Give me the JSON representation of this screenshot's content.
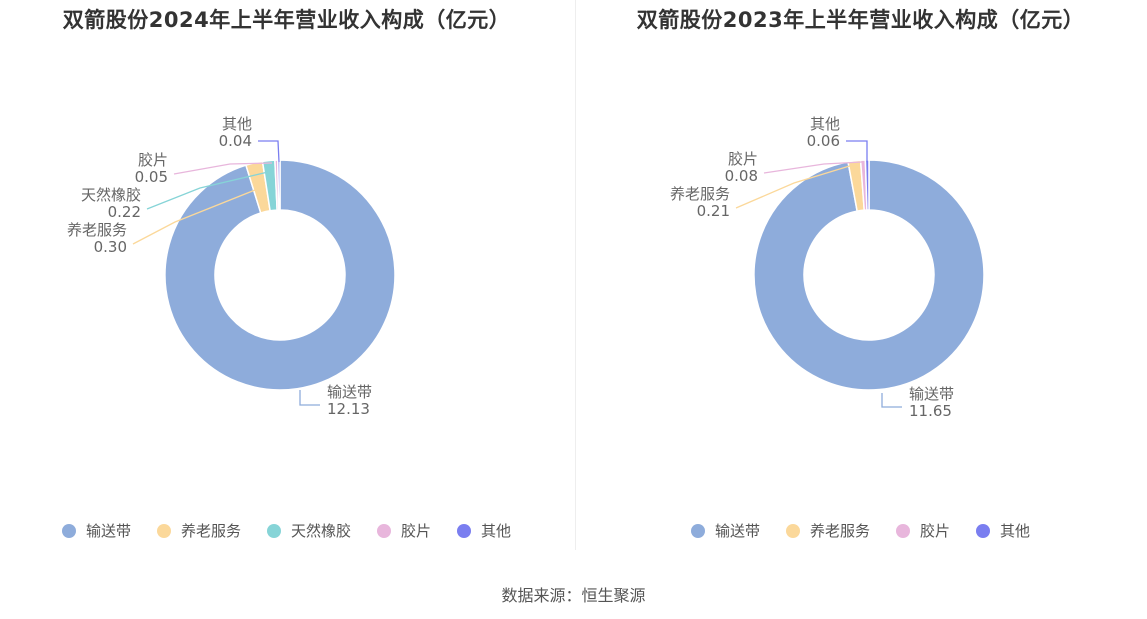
{
  "chart_data": [
    {
      "type": "pie",
      "variant": "donut",
      "title": "双箭股份2024年上半年营业收入构成（亿元）",
      "slices": [
        {
          "name": "输送带",
          "label": "12.13",
          "value": 12.13,
          "color": "#8eacdb"
        },
        {
          "name": "养老服务",
          "label": "0.30",
          "value": 0.3,
          "color": "#fbd89a"
        },
        {
          "name": "天然橡胶",
          "label": "0.22",
          "value": 0.22,
          "color": "#86d4d7"
        },
        {
          "name": "胶片",
          "label": "0.05",
          "value": 0.05,
          "color": "#e8b6dc"
        },
        {
          "name": "其他",
          "label": "0.04",
          "value": 0.04,
          "color": "#7a7ef0"
        }
      ],
      "legend_position": "bottom"
    },
    {
      "type": "pie",
      "variant": "donut",
      "title": "双箭股份2023年上半年营业收入构成（亿元）",
      "slices": [
        {
          "name": "输送带",
          "label": "11.65",
          "value": 11.65,
          "color": "#8eacdb"
        },
        {
          "name": "养老服务",
          "label": "0.21",
          "value": 0.21,
          "color": "#fbd89a"
        },
        {
          "name": "胶片",
          "label": "0.08",
          "value": 0.08,
          "color": "#e8b6dc"
        },
        {
          "name": "其他",
          "label": "0.06",
          "value": 0.06,
          "color": "#7a7ef0"
        }
      ],
      "legend_position": "bottom"
    }
  ],
  "source": "数据来源：恒生聚源"
}
